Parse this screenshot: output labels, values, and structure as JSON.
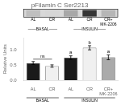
{
  "chart_data": {
    "type": "bar",
    "title": "pFilamin C Ser2213",
    "categories": [
      "AL",
      "CR",
      "AL",
      "CR",
      "CR+\nMK-2206"
    ],
    "values": [
      0.57,
      0.47,
      0.75,
      1.08,
      0.76
    ],
    "errors": [
      0.05,
      0.04,
      0.06,
      0.07,
      0.08
    ],
    "colors": [
      "#1a1a1a",
      "#f0f0f0",
      "#1a1a1a",
      "#f0f0f0",
      "#aaaaaa"
    ],
    "groups": [
      "BASAL",
      "BASAL",
      "INSULIN",
      "INSULIN",
      "INSULIN"
    ],
    "letter_labels": [
      null,
      null,
      "a",
      "b",
      "a"
    ],
    "bracket": {
      "label": "ns",
      "from": 0,
      "to": 1,
      "y": 0.7
    },
    "ylabel": "Relative Units",
    "ylim": [
      0,
      1.4
    ],
    "yticks": [
      {
        "value": 0,
        "label": "0.0"
      },
      0.5,
      {
        "value": 1,
        "label": "1.0"
      }
    ],
    "grid": false,
    "blot": {
      "bands": [
        0.28,
        0.18,
        0.38,
        0.88,
        0.32
      ],
      "lanes_top": [
        "AL",
        "CR",
        "AL",
        "CR",
        "CR+"
      ],
      "lanes_bottom": [
        null,
        null,
        null,
        null,
        "MK-2206"
      ],
      "group_labels": [
        "——BASAL——",
        "——INSULIN——"
      ]
    }
  }
}
